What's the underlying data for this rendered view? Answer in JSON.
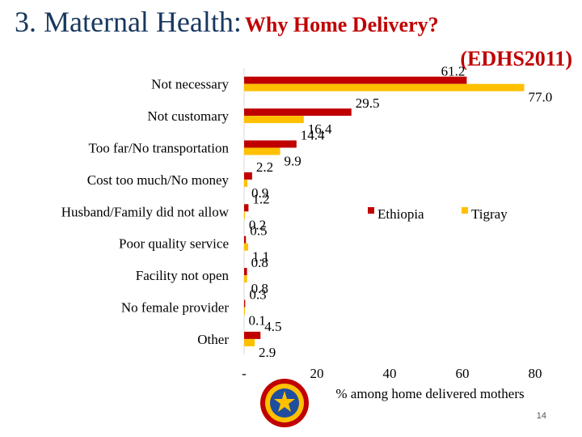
{
  "slide": {
    "title_main": "3. Maternal Health:",
    "title_sub": "Why Home Delivery?",
    "source": "(EDHS2011)",
    "page_number": "14"
  },
  "colors": {
    "title": "#17375e",
    "accent": "#c00000",
    "ethiopia": "#c00000",
    "tigray": "#ffc000"
  },
  "logo": {
    "icon": "regional-emblem-icon"
  },
  "chart_data": {
    "type": "bar",
    "orientation": "horizontal",
    "categories": [
      "Not necessary",
      "Not customary",
      "Too far/No transportation",
      "Cost too much/No money",
      "Husband/Family did not allow",
      "Poor quality service",
      "Facility not open",
      "No female provider",
      "Other"
    ],
    "series": [
      {
        "name": "Ethiopia",
        "color": "#c00000",
        "values": [
          61.2,
          29.5,
          14.4,
          2.2,
          1.2,
          0.5,
          0.8,
          0.3,
          4.5
        ],
        "labels": [
          "61.2",
          "29.5",
          "14.4",
          "2.2",
          "1.2",
          "0.5",
          "0.8",
          "0.3",
          "4.5"
        ]
      },
      {
        "name": "Tigray",
        "color": "#ffc000",
        "values": [
          77.0,
          16.4,
          9.9,
          0.9,
          0.2,
          1.1,
          0.8,
          0.1,
          2.9
        ],
        "labels": [
          "77.0",
          "16.4",
          "9.9",
          "0.9",
          "0.2",
          "1.1",
          "0.8",
          "0.1",
          "2.9"
        ]
      }
    ],
    "xlim": [
      0,
      80
    ],
    "xticks": [
      0,
      20,
      40,
      60,
      80
    ],
    "xtick_labels": [
      "-",
      "20",
      "40",
      "60",
      "80"
    ],
    "xlabel": "% among home delivered mothers",
    "ylabel": "",
    "grid": false,
    "legend_position": "right-middle"
  }
}
